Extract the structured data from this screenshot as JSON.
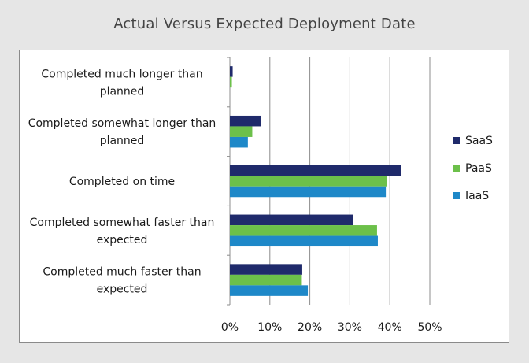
{
  "chart_data": {
    "type": "bar",
    "orientation": "horizontal",
    "title": "Actual Versus Expected Deployment Date",
    "categories": [
      [
        "Completed much longer than",
        "planned"
      ],
      [
        "Completed somewhat longer than",
        "planned"
      ],
      [
        "Completed on time"
      ],
      [
        "Completed somewhat faster than",
        "expected"
      ],
      [
        "Completed much faster than",
        "expected"
      ]
    ],
    "series": [
      {
        "name": "SaaS",
        "color": "#1f2a6b",
        "values": [
          0.7,
          7.8,
          42.8,
          30.8,
          18.1
        ]
      },
      {
        "name": "PaaS",
        "color": "#6cc04a",
        "values": [
          0.5,
          5.6,
          39.2,
          36.8,
          18.0
        ]
      },
      {
        "name": "IaaS",
        "color": "#1e88c8",
        "values": [
          0.0,
          4.5,
          39.0,
          37.0,
          19.5
        ]
      }
    ],
    "xlim": [
      0,
      50
    ],
    "xticks": [
      0,
      10,
      20,
      30,
      40,
      50
    ],
    "tick_suffix": "%",
    "grid": true,
    "legend_position": "right"
  }
}
